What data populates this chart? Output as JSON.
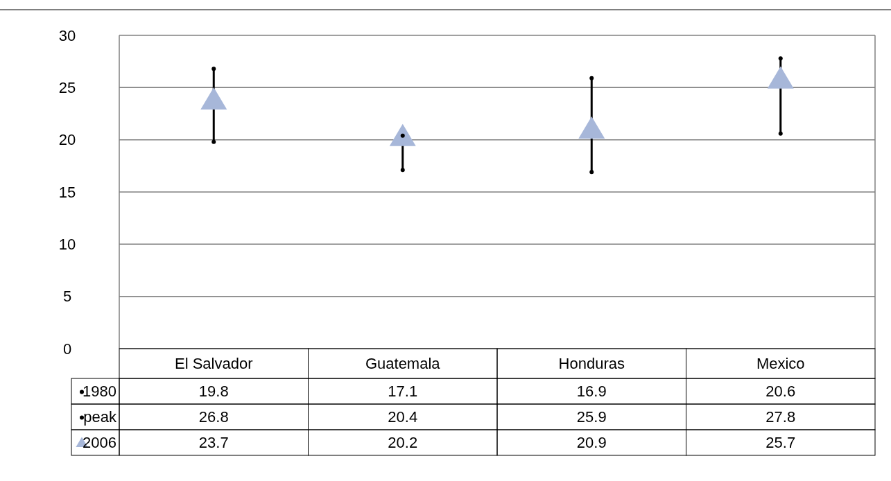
{
  "chart_data": {
    "type": "scatter",
    "categories": [
      "El Salvador",
      "Guatemala",
      "Honduras",
      "Mexico"
    ],
    "series": [
      {
        "name": "1980",
        "color": "#000000",
        "marker": "circle",
        "values": [
          19.8,
          17.1,
          16.9,
          20.6
        ]
      },
      {
        "name": "peak",
        "color": "#000000",
        "marker": "circle",
        "values": [
          26.8,
          20.4,
          25.9,
          27.8
        ]
      },
      {
        "name": "2006",
        "color": "#a7b7d9",
        "marker": "triangle",
        "values": [
          23.7,
          20.2,
          20.9,
          25.7
        ]
      }
    ],
    "ylim": [
      0,
      30
    ],
    "yticks": [
      0,
      5,
      10,
      15,
      20,
      25,
      30
    ],
    "grid": "y",
    "data_labels": true,
    "legend": "left"
  }
}
